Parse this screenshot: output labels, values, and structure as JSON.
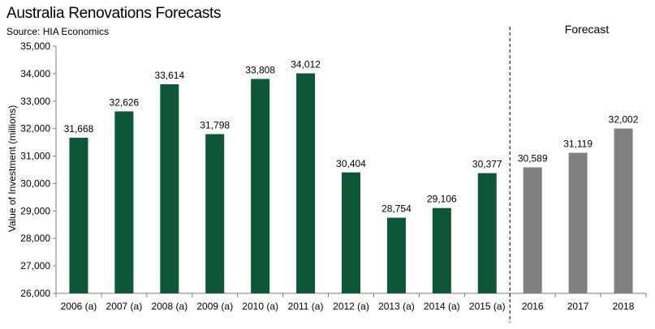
{
  "chart_data": {
    "type": "bar",
    "title": "Australia Renovations Forecasts",
    "subtitle": "Source: HIA Economics",
    "xlabel": "",
    "ylabel": "Value of Investment (millions)",
    "ylim": [
      26000,
      35000
    ],
    "yticks": [
      "26,000",
      "27,000",
      "28,000",
      "29,000",
      "30,000",
      "31,000",
      "32,000",
      "33,000",
      "34,000",
      "35,000"
    ],
    "ytick_values": [
      26000,
      27000,
      28000,
      29000,
      30000,
      31000,
      32000,
      33000,
      34000,
      35000
    ],
    "categories": [
      "2006 (a)",
      "2007 (a)",
      "2008 (a)",
      "2009 (a)",
      "2010 (a)",
      "2011 (a)",
      "2012 (a)",
      "2013 (a)",
      "2014 (a)",
      "2015 (a)",
      "2016",
      "2017",
      "2018"
    ],
    "values": [
      31668,
      32626,
      33614,
      31798,
      33808,
      34012,
      30404,
      28754,
      29106,
      30377,
      30589,
      31119,
      32002
    ],
    "data_labels": [
      "31,668",
      "32,626",
      "33,614",
      "31,798",
      "33,808",
      "34,012",
      "30,404",
      "28,754",
      "29,106",
      "30,377",
      "30,589",
      "31,119",
      "32,002"
    ],
    "forecast_start_index": 10,
    "annotation": "Forecast",
    "colors": {
      "actual": "#0e5638",
      "forecast": "#808080"
    },
    "grid": false
  }
}
